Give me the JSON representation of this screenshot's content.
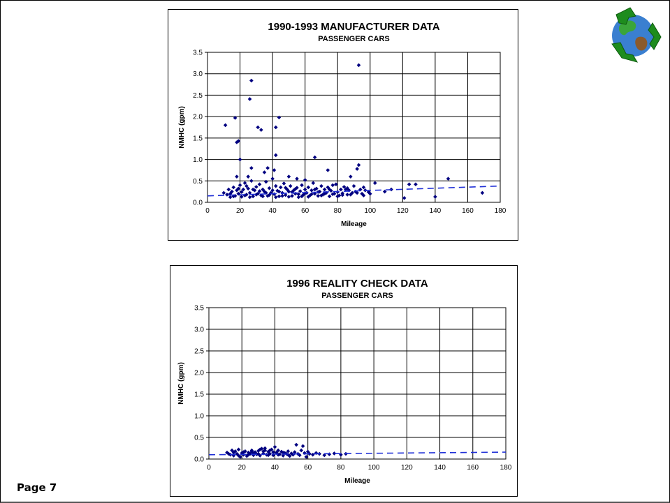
{
  "page": {
    "label": "Page 7"
  },
  "logo": {
    "icon": "recycle-globe-icon",
    "colors": {
      "arrows": "#1e8c1e",
      "ocean": "#3a7fd0",
      "land": "#3aa53a"
    }
  },
  "chart_data": [
    {
      "type": "scatter",
      "title": "1990-1993 MANUFACTURER DATA",
      "subtitle": "PASSENGER CARS",
      "xlabel": "Mileage",
      "ylabel": "NMHC (gpm)",
      "xlim": [
        0,
        180
      ],
      "ylim": [
        0,
        3.5
      ],
      "xticks": [
        "0",
        "20",
        "40",
        "60",
        "80",
        "100",
        "120",
        "140",
        "160",
        "180"
      ],
      "yticks": [
        "0.0",
        "0.5",
        "1.0",
        "1.5",
        "2.0",
        "2.5",
        "3.0",
        "3.5"
      ],
      "grid": true,
      "marker_color": "#000080",
      "trend_color": "#1f2fd6",
      "trendline": {
        "x": [
          0,
          180
        ],
        "y": [
          0.15,
          0.38
        ]
      },
      "points": [
        [
          11,
          1.8
        ],
        [
          17,
          1.97
        ],
        [
          18,
          1.4
        ],
        [
          19,
          1.43
        ],
        [
          20,
          1.0
        ],
        [
          26,
          2.41
        ],
        [
          27,
          2.84
        ],
        [
          31,
          1.75
        ],
        [
          33,
          1.69
        ],
        [
          42,
          1.75
        ],
        [
          44,
          1.98
        ],
        [
          42,
          1.1
        ],
        [
          66,
          1.05
        ],
        [
          93,
          3.2
        ],
        [
          27,
          0.8
        ],
        [
          37,
          0.8
        ],
        [
          41,
          0.75
        ],
        [
          18,
          0.6
        ],
        [
          25,
          0.6
        ],
        [
          35,
          0.7
        ],
        [
          50,
          0.6
        ],
        [
          55,
          0.55
        ],
        [
          60,
          0.52
        ],
        [
          74,
          0.75
        ],
        [
          77,
          0.4
        ],
        [
          88,
          0.6
        ],
        [
          93,
          0.87
        ],
        [
          92,
          0.78
        ],
        [
          103,
          0.45
        ],
        [
          109,
          0.25
        ],
        [
          113,
          0.3
        ],
        [
          121,
          0.1
        ],
        [
          124,
          0.42
        ],
        [
          128,
          0.42
        ],
        [
          140,
          0.13
        ],
        [
          148,
          0.55
        ],
        [
          169,
          0.22
        ],
        [
          100,
          0.2
        ],
        [
          96,
          0.35
        ],
        [
          85,
          0.3
        ],
        [
          10,
          0.22
        ],
        [
          12,
          0.18
        ],
        [
          13,
          0.3
        ],
        [
          14,
          0.12
        ],
        [
          15,
          0.25
        ],
        [
          16,
          0.35
        ],
        [
          17,
          0.15
        ],
        [
          18,
          0.28
        ],
        [
          19,
          0.2
        ],
        [
          20,
          0.4
        ],
        [
          21,
          0.13
        ],
        [
          22,
          0.3
        ],
        [
          23,
          0.45
        ],
        [
          24,
          0.18
        ],
        [
          25,
          0.32
        ],
        [
          26,
          0.22
        ],
        [
          27,
          0.5
        ],
        [
          28,
          0.14
        ],
        [
          29,
          0.28
        ],
        [
          30,
          0.36
        ],
        [
          31,
          0.2
        ],
        [
          32,
          0.42
        ],
        [
          33,
          0.16
        ],
        [
          34,
          0.3
        ],
        [
          35,
          0.25
        ],
        [
          36,
          0.48
        ],
        [
          37,
          0.15
        ],
        [
          38,
          0.33
        ],
        [
          39,
          0.22
        ],
        [
          40,
          0.55
        ],
        [
          41,
          0.19
        ],
        [
          42,
          0.38
        ],
        [
          43,
          0.27
        ],
        [
          44,
          0.14
        ],
        [
          45,
          0.35
        ],
        [
          46,
          0.22
        ],
        [
          47,
          0.44
        ],
        [
          48,
          0.17
        ],
        [
          49,
          0.3
        ],
        [
          50,
          0.25
        ],
        [
          51,
          0.38
        ],
        [
          52,
          0.15
        ],
        [
          53,
          0.28
        ],
        [
          54,
          0.2
        ],
        [
          55,
          0.34
        ],
        [
          56,
          0.12
        ],
        [
          57,
          0.26
        ],
        [
          58,
          0.4
        ],
        [
          59,
          0.18
        ],
        [
          60,
          0.3
        ],
        [
          61,
          0.22
        ],
        [
          62,
          0.35
        ],
        [
          63,
          0.16
        ],
        [
          64,
          0.28
        ],
        [
          65,
          0.45
        ],
        [
          66,
          0.2
        ],
        [
          67,
          0.32
        ],
        [
          68,
          0.15
        ],
        [
          69,
          0.25
        ],
        [
          70,
          0.38
        ],
        [
          71,
          0.18
        ],
        [
          72,
          0.3
        ],
        [
          73,
          0.22
        ],
        [
          74,
          0.35
        ],
        [
          75,
          0.14
        ],
        [
          76,
          0.27
        ],
        [
          78,
          0.2
        ],
        [
          79,
          0.42
        ],
        [
          80,
          0.24
        ],
        [
          81,
          0.16
        ],
        [
          82,
          0.3
        ],
        [
          83,
          0.21
        ],
        [
          84,
          0.36
        ],
        [
          86,
          0.18
        ],
        [
          87,
          0.28
        ],
        [
          89,
          0.22
        ],
        [
          90,
          0.38
        ],
        [
          91,
          0.25
        ],
        [
          94,
          0.3
        ],
        [
          95,
          0.2
        ],
        [
          97,
          0.28
        ],
        [
          99,
          0.24
        ],
        [
          14,
          0.2
        ],
        [
          16,
          0.14
        ],
        [
          19,
          0.32
        ],
        [
          21,
          0.24
        ],
        [
          23,
          0.16
        ],
        [
          24,
          0.38
        ],
        [
          26,
          0.12
        ],
        [
          28,
          0.3
        ],
        [
          30,
          0.18
        ],
        [
          32,
          0.26
        ],
        [
          34,
          0.14
        ],
        [
          36,
          0.22
        ],
        [
          38,
          0.17
        ],
        [
          40,
          0.28
        ],
        [
          42,
          0.12
        ],
        [
          44,
          0.25
        ],
        [
          46,
          0.15
        ],
        [
          48,
          0.34
        ],
        [
          50,
          0.13
        ],
        [
          52,
          0.24
        ],
        [
          54,
          0.31
        ],
        [
          56,
          0.19
        ],
        [
          58,
          0.14
        ],
        [
          60,
          0.21
        ],
        [
          62,
          0.13
        ],
        [
          64,
          0.19
        ],
        [
          66,
          0.3
        ],
        [
          68,
          0.24
        ],
        [
          70,
          0.16
        ],
        [
          72,
          0.2
        ],
        [
          75,
          0.3
        ],
        [
          77,
          0.19
        ],
        [
          80,
          0.14
        ],
        [
          83,
          0.17
        ],
        [
          86,
          0.33
        ],
        [
          88,
          0.18
        ],
        [
          92,
          0.22
        ],
        [
          96,
          0.16
        ]
      ]
    },
    {
      "type": "scatter",
      "title": "1996 REALITY CHECK DATA",
      "subtitle": "PASSENGER CARS",
      "xlabel": "Mileage",
      "ylabel": "NMHC (gpm)",
      "xlim": [
        0,
        180
      ],
      "ylim": [
        0,
        3.5
      ],
      "xticks": [
        "0",
        "20",
        "40",
        "60",
        "80",
        "100",
        "120",
        "140",
        "160",
        "180"
      ],
      "yticks": [
        "0.0",
        "0.5",
        "1.0",
        "1.5",
        "2.0",
        "2.5",
        "3.0",
        "3.5"
      ],
      "grid": true,
      "marker_color": "#000080",
      "trend_color": "#1f2fd6",
      "trendline": {
        "x": [
          0,
          180
        ],
        "y": [
          0.1,
          0.16
        ]
      },
      "points": [
        [
          11,
          0.15
        ],
        [
          13,
          0.1
        ],
        [
          14,
          0.2
        ],
        [
          15,
          0.08
        ],
        [
          16,
          0.18
        ],
        [
          17,
          0.12
        ],
        [
          18,
          0.22
        ],
        [
          19,
          0.05
        ],
        [
          20,
          0.14
        ],
        [
          21,
          0.1
        ],
        [
          22,
          0.18
        ],
        [
          23,
          0.07
        ],
        [
          24,
          0.15
        ],
        [
          25,
          0.12
        ],
        [
          26,
          0.2
        ],
        [
          27,
          0.09
        ],
        [
          28,
          0.16
        ],
        [
          29,
          0.11
        ],
        [
          30,
          0.19
        ],
        [
          31,
          0.08
        ],
        [
          32,
          0.24
        ],
        [
          33,
          0.13
        ],
        [
          34,
          0.2
        ],
        [
          35,
          0.1
        ],
        [
          36,
          0.17
        ],
        [
          37,
          0.12
        ],
        [
          38,
          0.22
        ],
        [
          39,
          0.09
        ],
        [
          40,
          0.28
        ],
        [
          41,
          0.15
        ],
        [
          42,
          0.2
        ],
        [
          43,
          0.11
        ],
        [
          44,
          0.17
        ],
        [
          45,
          0.08
        ],
        [
          46,
          0.14
        ],
        [
          47,
          0.12
        ],
        [
          48,
          0.18
        ],
        [
          49,
          0.07
        ],
        [
          50,
          0.13
        ],
        [
          51,
          0.1
        ],
        [
          52,
          0.16
        ],
        [
          53,
          0.33
        ],
        [
          54,
          0.12
        ],
        [
          55,
          0.09
        ],
        [
          56,
          0.2
        ],
        [
          57,
          0.3
        ],
        [
          58,
          0.14
        ],
        [
          59,
          0.05
        ],
        [
          60,
          0.17
        ],
        [
          61,
          0.12
        ],
        [
          63,
          0.1
        ],
        [
          65,
          0.14
        ],
        [
          67,
          0.12
        ],
        [
          70,
          0.09
        ],
        [
          73,
          0.11
        ],
        [
          76,
          0.13
        ],
        [
          80,
          0.1
        ],
        [
          83,
          0.12
        ],
        [
          12,
          0.12
        ],
        [
          15,
          0.15
        ],
        [
          18,
          0.08
        ],
        [
          21,
          0.16
        ],
        [
          24,
          0.1
        ],
        [
          27,
          0.14
        ],
        [
          30,
          0.12
        ],
        [
          33,
          0.18
        ],
        [
          36,
          0.09
        ],
        [
          39,
          0.16
        ],
        [
          42,
          0.1
        ],
        [
          45,
          0.15
        ],
        [
          48,
          0.1
        ],
        [
          34,
          0.25
        ],
        [
          31,
          0.22
        ],
        [
          37,
          0.2
        ],
        [
          26,
          0.17
        ]
      ]
    }
  ]
}
